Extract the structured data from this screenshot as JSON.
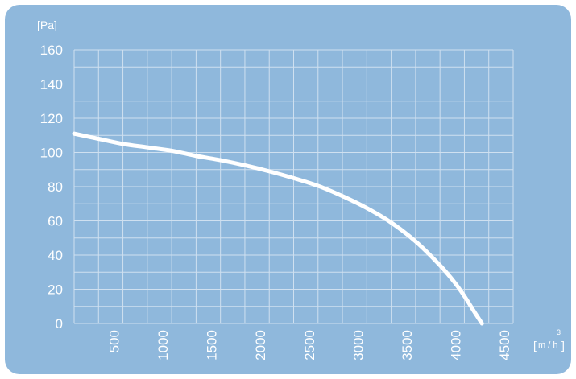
{
  "colors": {
    "background": "#8fb8dc",
    "grid": "#cfe0f0",
    "text": "#ffffff",
    "curve": "#ffffff"
  },
  "chart_data": {
    "type": "line",
    "title": "",
    "ylabel": "[Pa]",
    "xlabel_unit": "m / h",
    "xlabel_exponent": "3",
    "xlim": [
      0,
      4500
    ],
    "ylim": [
      0,
      160
    ],
    "x_ticks": [
      500,
      1000,
      1500,
      2000,
      2500,
      3000,
      3500,
      4000,
      4500
    ],
    "y_ticks": [
      0,
      20,
      40,
      60,
      80,
      100,
      120,
      140,
      160
    ],
    "grid": true,
    "series": [
      {
        "x": [
          0,
          250,
          500,
          750,
          1000,
          1250,
          1500,
          1750,
          2000,
          2250,
          2500,
          2750,
          3000,
          3250,
          3500,
          3750,
          3900,
          4000,
          4100,
          4180
        ],
        "y": [
          111,
          108,
          105,
          103,
          101,
          98,
          95.5,
          92.5,
          89,
          85,
          80.5,
          74.5,
          67.5,
          59,
          48,
          34,
          24,
          16,
          7,
          0
        ]
      }
    ]
  }
}
